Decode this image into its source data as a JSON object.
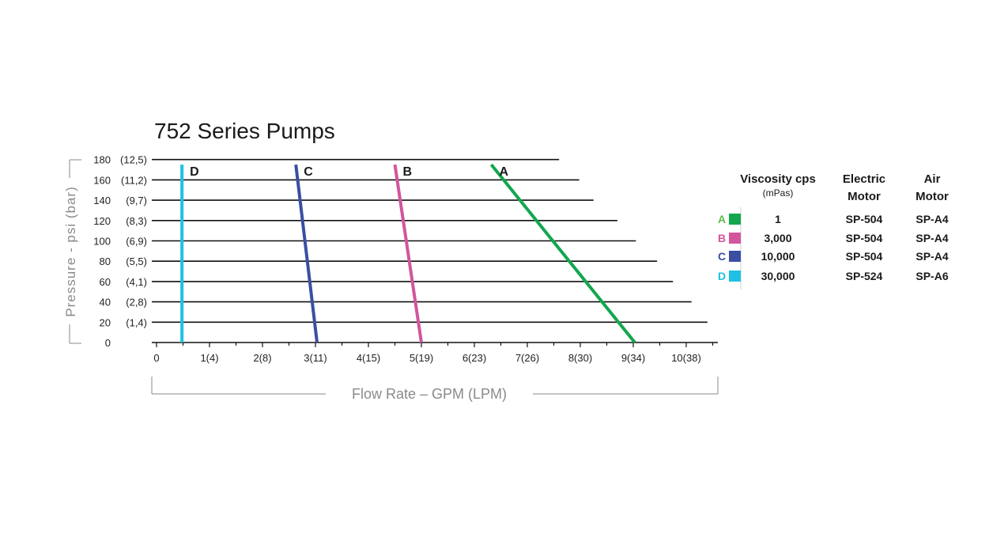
{
  "chart_data": {
    "type": "line",
    "title": "752 Series Pumps",
    "xlabel": "Flow Rate – GPM (LPM)",
    "ylabel": "Pressure - psi (bar)",
    "xlim": [
      0,
      10.5
    ],
    "ylim": [
      0,
      180
    ],
    "x_ticks": [
      {
        "value": 0,
        "label": "0"
      },
      {
        "value": 1,
        "label": "1(4)"
      },
      {
        "value": 2,
        "label": "2(8)"
      },
      {
        "value": 3,
        "label": "3(11)"
      },
      {
        "value": 4,
        "label": "4(15)"
      },
      {
        "value": 5,
        "label": "5(19)"
      },
      {
        "value": 6,
        "label": "6(23)"
      },
      {
        "value": 7,
        "label": "7(26)"
      },
      {
        "value": 8,
        "label": "8(30)"
      },
      {
        "value": 9,
        "label": "9(34)"
      },
      {
        "value": 10,
        "label": "10(38)"
      }
    ],
    "y_ticks": [
      {
        "value": 0,
        "psi": "0",
        "bar": ""
      },
      {
        "value": 20,
        "psi": "20",
        "bar": "(1,4)",
        "line_end": 10.4
      },
      {
        "value": 40,
        "psi": "40",
        "bar": "(2,8)",
        "line_end": 10.1
      },
      {
        "value": 60,
        "psi": "60",
        "bar": "(4,1)",
        "line_end": 9.75
      },
      {
        "value": 80,
        "psi": "80",
        "bar": "(5,5)",
        "line_end": 9.45
      },
      {
        "value": 100,
        "psi": "100",
        "bar": "(6,9)",
        "line_end": 9.05
      },
      {
        "value": 120,
        "psi": "120",
        "bar": "(8,3)",
        "line_end": 8.7
      },
      {
        "value": 140,
        "psi": "140",
        "bar": "(9,7)",
        "line_end": 8.25
      },
      {
        "value": 160,
        "psi": "160",
        "bar": "(11,2)",
        "line_end": 7.98
      },
      {
        "value": 180,
        "psi": "180",
        "bar": "(12,5)",
        "line_end": 7.6
      }
    ],
    "series": [
      {
        "name": "A",
        "color": "#13a64f",
        "points": [
          [
            9.03,
            0
          ],
          [
            6.32,
            175
          ]
        ]
      },
      {
        "name": "B",
        "color": "#d3559c",
        "points": [
          [
            5.0,
            0
          ],
          [
            4.5,
            175
          ]
        ]
      },
      {
        "name": "C",
        "color": "#3a4fa2",
        "points": [
          [
            3.03,
            0
          ],
          [
            2.63,
            175
          ]
        ]
      },
      {
        "name": "D",
        "color": "#1fc0e3",
        "points": [
          [
            0.48,
            0
          ],
          [
            0.48,
            175
          ]
        ]
      }
    ],
    "grid": true
  },
  "legend": {
    "headers": {
      "viscosity": "Viscosity cps",
      "viscosity_unit": "(mPas)",
      "electric_1": "Electric",
      "electric_2": "Motor",
      "air_1": "Air",
      "air_2": "Motor"
    },
    "rows": [
      {
        "letter": "A",
        "color": "#13a64f",
        "letter_color": "#5bbd4a",
        "viscosity": "1",
        "electric": "SP-504",
        "air": "SP-A4"
      },
      {
        "letter": "B",
        "color": "#d3559c",
        "letter_color": "#d3559c",
        "viscosity": "3,000",
        "electric": "SP-504",
        "air": "SP-A4"
      },
      {
        "letter": "C",
        "color": "#3a4fa2",
        "letter_color": "#3a4fa2",
        "viscosity": "10,000",
        "electric": "SP-504",
        "air": "SP-A4"
      },
      {
        "letter": "D",
        "color": "#1fc0e3",
        "letter_color": "#1fc0e3",
        "viscosity": "30,000",
        "electric": "SP-524",
        "air": "SP-A6"
      }
    ]
  }
}
